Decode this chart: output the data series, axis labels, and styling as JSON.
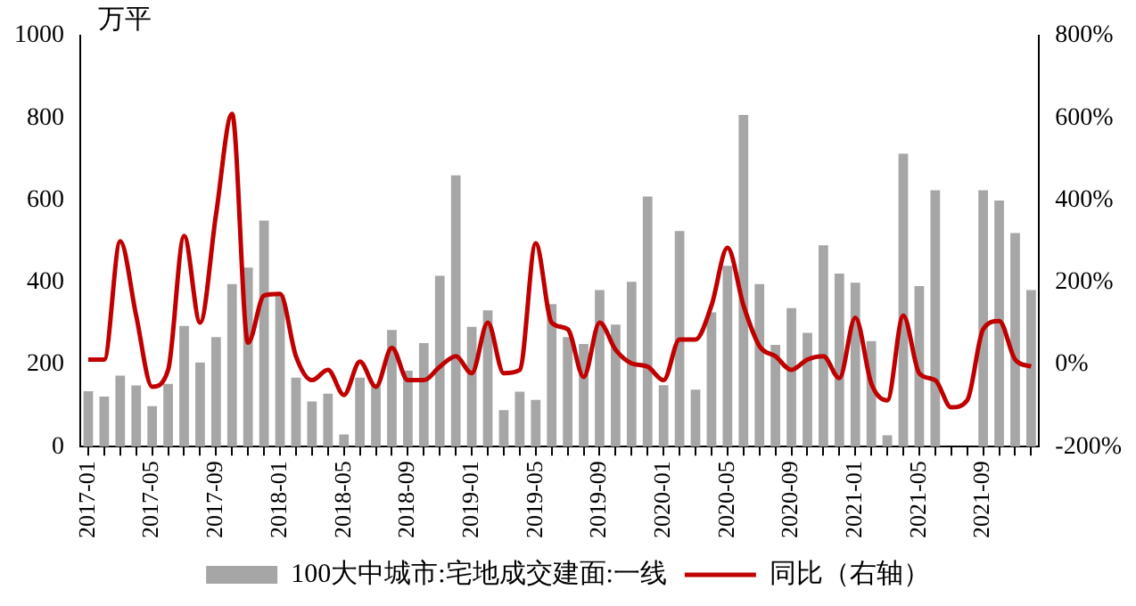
{
  "chart_data": {
    "type": "bar",
    "ylabel": "万平",
    "categories": [
      "2017-01",
      null,
      null,
      null,
      "2017-05",
      null,
      null,
      null,
      "2017-09",
      null,
      null,
      null,
      "2018-01",
      null,
      null,
      null,
      "2018-05",
      null,
      null,
      null,
      "2018-09",
      null,
      null,
      null,
      "2019-01",
      null,
      null,
      null,
      "2019-05",
      null,
      null,
      null,
      "2019-09",
      null,
      null,
      null,
      "2020-01",
      null,
      null,
      null,
      "2020-05",
      null,
      null,
      null,
      "2020-09",
      null,
      null,
      null,
      "2021-01",
      null,
      null,
      null,
      "2021-05",
      null,
      null,
      null,
      "2021-09",
      null,
      null,
      null
    ],
    "series": [
      {
        "name": "100大中城市:宅地成交建面:一线",
        "color": "#a6a6a6",
        "values": [
          135,
          122,
          173,
          149,
          99,
          153,
          294,
          205,
          267,
          396,
          436,
          550,
          370,
          168,
          110,
          129,
          30,
          168,
          152,
          284,
          185,
          252,
          416,
          660,
          292,
          332,
          89,
          134,
          114,
          347,
          267,
          250,
          381,
          297,
          401,
          609,
          150,
          525,
          139,
          327,
          440,
          807,
          396,
          248,
          337,
          277,
          490,
          421,
          399,
          257,
          28,
          713,
          391,
          624,
          null,
          null,
          624,
          599,
          520,
          381
        ]
      },
      {
        "name": "同比（右轴）",
        "type": "line",
        "axis": "y2",
        "color": "#c00000",
        "values": [
          12,
          12,
          300,
          119,
          -54,
          -13,
          313,
          102,
          366,
          610,
          53,
          168,
          172,
          20,
          -38,
          -13,
          -74,
          7,
          -54,
          41,
          -38,
          -38,
          -5,
          20,
          -21,
          102,
          -21,
          -13,
          295,
          102,
          86,
          -30,
          102,
          36,
          3,
          -5,
          -38,
          61,
          61,
          144,
          284,
          144,
          45,
          20,
          -13,
          12,
          20,
          -33,
          114,
          -46,
          -87,
          119,
          -21,
          -38,
          -104,
          -87,
          86,
          106,
          12,
          -5
        ]
      }
    ],
    "ylim": [
      0,
      1000
    ],
    "yticks": [
      0,
      200,
      400,
      600,
      800,
      1000
    ],
    "y2lim": [
      -200,
      800
    ],
    "y2ticks": [
      {
        "value": -200,
        "label": "-200%"
      },
      {
        "value": 0,
        "label": "0%"
      },
      {
        "value": 200,
        "label": "200%"
      },
      {
        "value": 400,
        "label": "400%"
      },
      {
        "value": 600,
        "label": "600%"
      },
      {
        "value": 800,
        "label": "800%"
      }
    ],
    "legend": "bottom",
    "grid": false
  }
}
